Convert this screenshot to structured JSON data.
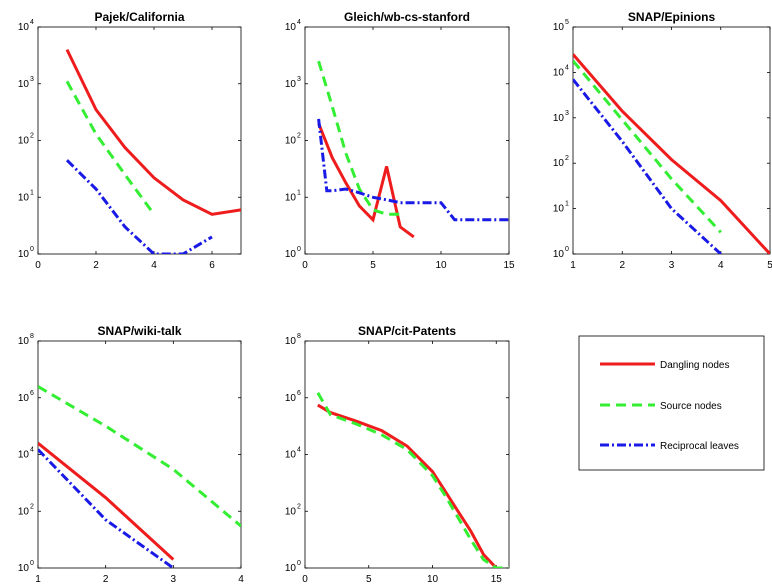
{
  "chart_data": [
    {
      "type": "line",
      "title": "Pajek/California",
      "log_y": true,
      "xlim": [
        0,
        7
      ],
      "ylim_exp": [
        0,
        4
      ],
      "xticks": [
        "0",
        "2",
        "4",
        "6"
      ],
      "xtick_values": [
        0,
        2,
        4,
        6
      ],
      "ytick_exponents": [
        "0",
        "1",
        "2",
        "3",
        "4"
      ],
      "series": [
        {
          "key": "dangling",
          "x": [
            1,
            2,
            3,
            4,
            5,
            6,
            7
          ],
          "y": [
            4000,
            350,
            75,
            22,
            9,
            5,
            6
          ]
        },
        {
          "key": "source",
          "x": [
            1,
            2,
            3,
            4
          ],
          "y": [
            1100,
            130,
            25,
            5
          ]
        },
        {
          "key": "reciprocal",
          "x": [
            1,
            2,
            3,
            4,
            5,
            6
          ],
          "y": [
            45,
            14,
            3,
            1,
            1,
            2
          ]
        }
      ]
    },
    {
      "type": "line",
      "title": "Gleich/wb-cs-stanford",
      "log_y": true,
      "xlim": [
        0,
        15
      ],
      "ylim_exp": [
        0,
        4
      ],
      "xticks": [
        "0",
        "5",
        "10",
        "15"
      ],
      "xtick_values": [
        0,
        5,
        10,
        15
      ],
      "ytick_exponents": [
        "0",
        "1",
        "2",
        "3",
        "4"
      ],
      "series": [
        {
          "key": "dangling",
          "x": [
            1,
            2,
            3,
            4,
            5,
            6,
            7,
            8
          ],
          "y": [
            200,
            50,
            18,
            7,
            4,
            35,
            3,
            2
          ]
        },
        {
          "key": "source",
          "x": [
            1,
            2,
            3,
            4,
            5,
            6,
            7
          ],
          "y": [
            2500,
            400,
            60,
            14,
            6,
            5,
            5
          ]
        },
        {
          "key": "reciprocal",
          "x": [
            1,
            1.6,
            2,
            3,
            4,
            5,
            6,
            7,
            8,
            9,
            10,
            11,
            12,
            13,
            14,
            15
          ],
          "y": [
            240,
            13,
            13,
            14,
            12,
            10,
            9,
            8,
            8,
            8,
            8,
            4,
            4,
            4,
            4,
            4
          ]
        }
      ]
    },
    {
      "type": "line",
      "title": "SNAP/Epinions",
      "log_y": true,
      "xlim": [
        1,
        5
      ],
      "ylim_exp": [
        0,
        5
      ],
      "xticks": [
        "1",
        "2",
        "3",
        "4",
        "5"
      ],
      "xtick_values": [
        1,
        2,
        3,
        4,
        5
      ],
      "ytick_exponents": [
        "0",
        "1",
        "2",
        "3",
        "4",
        "5"
      ],
      "series": [
        {
          "key": "dangling",
          "x": [
            1,
            2,
            3,
            4,
            5
          ],
          "y": [
            25000,
            1400,
            120,
            15,
            1
          ]
        },
        {
          "key": "source",
          "x": [
            1,
            2,
            3,
            4
          ],
          "y": [
            18000,
            900,
            45,
            3
          ]
        },
        {
          "key": "reciprocal",
          "x": [
            1,
            2,
            3,
            4
          ],
          "y": [
            7000,
            300,
            10,
            1
          ]
        }
      ]
    },
    {
      "type": "line",
      "title": "SNAP/wiki-talk",
      "log_y": true,
      "xlim": [
        1,
        4
      ],
      "ylim_exp": [
        0,
        8
      ],
      "xticks": [
        "1",
        "2",
        "3",
        "4"
      ],
      "xtick_values": [
        1,
        2,
        3,
        4
      ],
      "ytick_exponents": [
        "0",
        "2",
        "4",
        "6",
        "8"
      ],
      "ytick_exp_values": [
        0,
        2,
        4,
        6,
        8
      ],
      "series": [
        {
          "key": "dangling",
          "x": [
            1,
            2,
            3
          ],
          "y": [
            25000,
            300,
            2
          ]
        },
        {
          "key": "source",
          "x": [
            1,
            2,
            3,
            4
          ],
          "y": [
            2500000,
            100000,
            3000,
            30
          ]
        },
        {
          "key": "reciprocal",
          "x": [
            1,
            2,
            3
          ],
          "y": [
            15000,
            50,
            1
          ]
        }
      ]
    },
    {
      "type": "line",
      "title": "SNAP/cit-Patents",
      "log_y": true,
      "xlim": [
        0,
        16
      ],
      "ylim_exp": [
        0,
        8
      ],
      "xticks": [
        "0",
        "5",
        "10",
        "15"
      ],
      "xtick_values": [
        0,
        5,
        10,
        15
      ],
      "ytick_exponents": [
        "0",
        "2",
        "4",
        "6",
        "8"
      ],
      "ytick_exp_values": [
        0,
        2,
        4,
        6,
        8
      ],
      "series": [
        {
          "key": "dangling",
          "x": [
            1,
            2,
            4,
            6,
            8,
            10,
            11,
            12,
            13,
            14,
            15
          ],
          "y": [
            550000,
            300000,
            150000,
            70000,
            20000,
            2500,
            500,
            100,
            20,
            3,
            1
          ]
        },
        {
          "key": "source",
          "x": [
            1,
            2,
            4,
            6,
            8,
            10,
            11,
            12,
            13,
            14,
            15,
            16
          ],
          "y": [
            1500000,
            250000,
            120000,
            50000,
            15000,
            1800,
            350,
            60,
            10,
            2,
            1,
            1
          ]
        }
      ]
    }
  ],
  "legend": {
    "dangling": {
      "label": "Dangling nodes",
      "color": "#ee1c1c",
      "dash": ""
    },
    "source": {
      "label": "Source nodes",
      "color": "#33ee33",
      "dash": "10 6"
    },
    "reciprocal": {
      "label": "Reciprocal leaves",
      "color": "#1a1ae6",
      "dash": "9 3 2 3"
    }
  }
}
